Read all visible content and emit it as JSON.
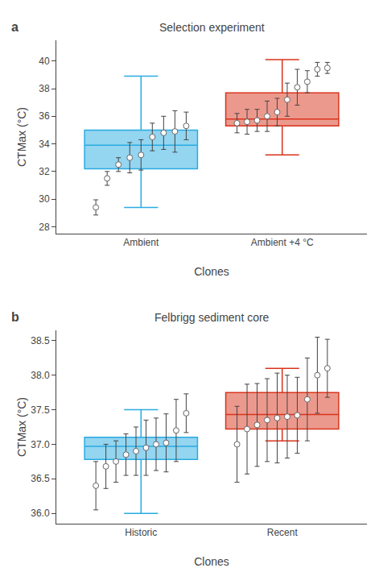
{
  "chart_data": [
    {
      "type": "box",
      "title": "Selection experiment",
      "x_label": "Clones",
      "y_label": "CTMax (°C)",
      "annotation": "a",
      "categories": [
        "Ambient",
        "Ambient +4 °C"
      ],
      "colors": [
        "#29ABE2",
        "#D9341C"
      ],
      "boxes": [
        {
          "q1": 32.2,
          "median": 33.9,
          "q3": 35.0,
          "whisker_low": 29.4,
          "whisker_high": 38.9
        },
        {
          "q1": 35.3,
          "median": 35.8,
          "q3": 37.7,
          "whisker_low": 33.2,
          "whisker_high": 40.1
        }
      ],
      "points": [
        {
          "color": "white",
          "values": [
            29.4,
            31.5,
            32.5,
            33.0,
            33.2,
            34.5,
            34.8,
            34.9,
            35.3
          ],
          "errors": [
            0.55,
            0.5,
            0.5,
            1.1,
            1.1,
            1.0,
            1.2,
            1.5,
            1.0
          ]
        },
        {
          "color": "white",
          "values": [
            35.5,
            35.6,
            35.7,
            36.0,
            36.3,
            37.2,
            38.1,
            38.5,
            39.4,
            39.5
          ],
          "errors": [
            0.7,
            0.9,
            0.8,
            1.1,
            1.0,
            1.2,
            1.3,
            0.8,
            0.5,
            0.4
          ]
        }
      ],
      "ylim": [
        27.5,
        41.5
      ],
      "yticks": [
        28,
        30,
        32,
        34,
        36,
        38,
        40
      ],
      "grid": false
    },
    {
      "type": "box",
      "title": "Felbrigg sediment core",
      "x_label": "Clones",
      "y_label": "CTMax (°C)",
      "annotation": "b",
      "categories": [
        "Historic",
        "Recent"
      ],
      "colors": [
        "#29ABE2",
        "#D9341C"
      ],
      "boxes": [
        {
          "q1": 36.78,
          "median": 36.97,
          "q3": 37.1,
          "whisker_low": 36.0,
          "whisker_high": 37.5
        },
        {
          "q1": 37.22,
          "median": 37.43,
          "q3": 37.75,
          "whisker_low": 37.05,
          "whisker_high": 38.1
        }
      ],
      "points": [
        {
          "color": "white",
          "values": [
            36.4,
            36.68,
            36.75,
            36.85,
            36.9,
            36.95,
            37.0,
            37.02,
            37.2,
            37.45
          ],
          "errors": [
            0.35,
            0.32,
            0.3,
            0.3,
            0.35,
            0.4,
            0.38,
            0.42,
            0.45,
            0.28
          ]
        },
        {
          "color": "white",
          "values": [
            37.0,
            37.22,
            37.28,
            37.35,
            37.38,
            37.4,
            37.42,
            37.65,
            38.0,
            38.1
          ],
          "errors": [
            0.55,
            0.65,
            0.6,
            0.6,
            0.65,
            0.6,
            0.55,
            0.6,
            0.55,
            0.42
          ]
        }
      ],
      "ylim": [
        35.85,
        38.65
      ],
      "yticks": [
        {
          "value": 36,
          "label": "36.0"
        },
        36.5,
        {
          "value": 37,
          "label": "37.0"
        },
        37.5,
        {
          "value": 38,
          "label": "38.0"
        },
        38.5
      ],
      "grid": false
    }
  ]
}
